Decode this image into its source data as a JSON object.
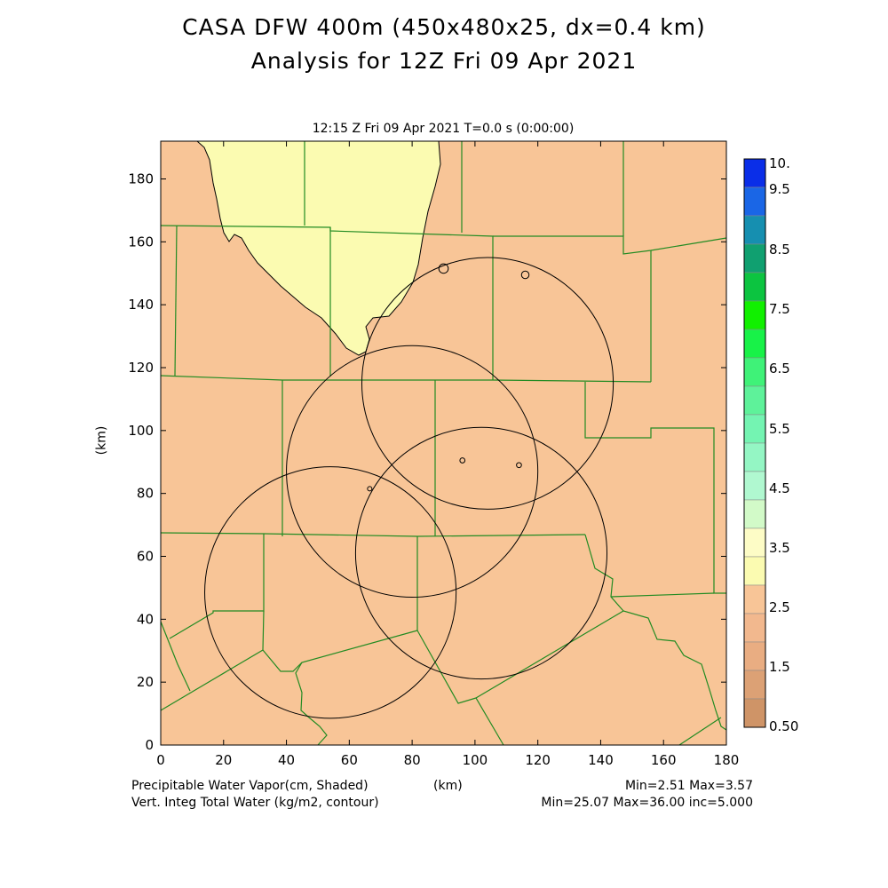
{
  "header": {
    "title_line1": "CASA DFW 400m (450x480x25, dx=0.4 km)",
    "title_line2": "Analysis for 12Z Fri 09 Apr 2021",
    "time_label": "12:15 Z Fri 09 Apr 2021   T=0.0 s (0:00:00)"
  },
  "footer": {
    "shaded_label": "Precipitable Water Vapor(cm, Shaded)",
    "contour_label": "Vert. Integ Total Water (kg/m2, contour)",
    "axis_unit": "(km)",
    "shaded_stats": "Min=2.51 Max=3.57",
    "contour_stats": "Min=25.07 Max=36.00 inc=5.000"
  },
  "colors": {
    "background_field": "#f8c597",
    "highlight_field": "#fbfbb1",
    "county_lines": "#228b22",
    "contour_lines": "#000000"
  },
  "chart_data": {
    "type": "heatmap",
    "xlabel": "(km)",
    "ylabel": "(km)",
    "xlim": [
      0,
      180
    ],
    "ylim": [
      0,
      192
    ],
    "xticks": [
      0,
      20,
      40,
      60,
      80,
      100,
      120,
      140,
      160,
      180
    ],
    "yticks": [
      0,
      20,
      40,
      60,
      80,
      100,
      120,
      140,
      160,
      180
    ],
    "colorbar": {
      "labels": [
        "10.",
        "9.5",
        "8.5",
        "7.5",
        "6.5",
        "5.5",
        "4.5",
        "3.5",
        "2.5",
        "1.5",
        "0.50"
      ],
      "colors": [
        "#0a2ee8",
        "#1a66e6",
        "#168fb0",
        "#10a070",
        "#0cc440",
        "#11f000",
        "#18f248",
        "#3ff278",
        "#5ef29a",
        "#74f4b2",
        "#94f6c4",
        "#b0f8d0",
        "#d2fac8",
        "#fdfcc6",
        "#fbfbb1",
        "#f8c597",
        "#f2b88e",
        "#e9ad82",
        "#dca175",
        "#cf9467"
      ]
    },
    "radar_rings": [
      {
        "center": [
          54,
          48.5
        ],
        "radius": 40
      },
      {
        "center": [
          80,
          87
        ],
        "radius": 40
      },
      {
        "center": [
          102,
          61
        ],
        "radius": 40
      },
      {
        "center": [
          104,
          115
        ],
        "radius": 40
      }
    ],
    "small_contours": [
      {
        "center": [
          90,
          151.5
        ],
        "r": 1.5
      },
      {
        "center": [
          116,
          149.5
        ],
        "r": 1.2
      },
      {
        "center": [
          96,
          90.5
        ],
        "r": 0.8
      },
      {
        "center": [
          114,
          89
        ],
        "r": 0.8
      },
      {
        "center": [
          66.5,
          81.5
        ],
        "r": 0.6
      }
    ]
  }
}
